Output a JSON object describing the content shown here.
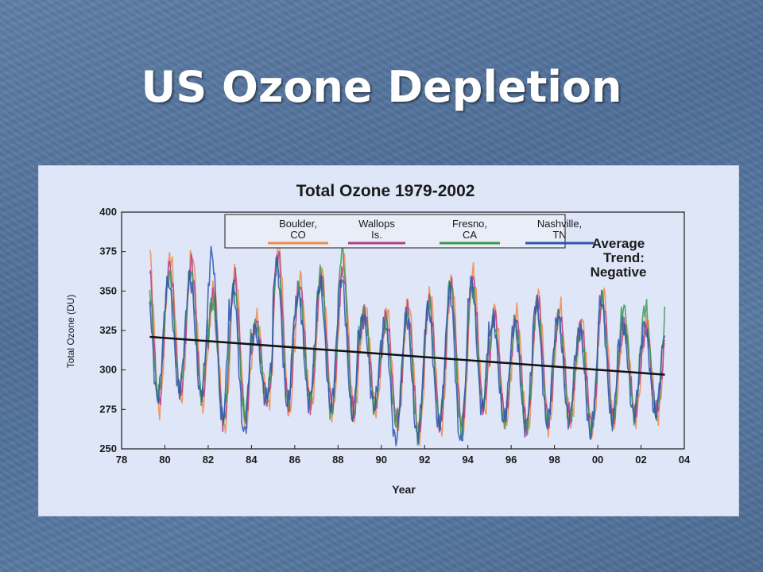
{
  "slide": {
    "title": "US Ozone Depletion"
  },
  "colors": {
    "Boulder": "#f08a4b",
    "Wallops": "#b0408a",
    "Fresno": "#3a9a50",
    "Nashville": "#2f55b0",
    "trend": "#111111"
  },
  "chart_data": {
    "type": "line",
    "title": "Total Ozone 1979-2002",
    "xlabel": "Year",
    "ylabel": "Total Ozone (DU)",
    "xlim": [
      1978,
      2004
    ],
    "ylim": [
      250,
      400
    ],
    "xticks": [
      1978,
      1980,
      1982,
      1984,
      1986,
      1988,
      1990,
      1992,
      1994,
      1996,
      1998,
      2000,
      2002,
      2004
    ],
    "xtick_labels": [
      "78",
      "80",
      "82",
      "84",
      "86",
      "88",
      "90",
      "92",
      "94",
      "96",
      "98",
      "00",
      "02",
      "04"
    ],
    "yticks": [
      250,
      275,
      300,
      325,
      350,
      375,
      400
    ],
    "ytick_labels": [
      "250",
      "275",
      "300",
      "325",
      "350",
      "375",
      "400"
    ],
    "grid": false,
    "legend_position": "top",
    "series": [
      {
        "name": "Boulder, CO",
        "label_line1": "Boulder,",
        "label_line2": "CO",
        "color_key": "Boulder",
        "annual_peaks": [
          378,
          372,
          374,
          352,
          362,
          332,
          380,
          358,
          362,
          368,
          340,
          338,
          342,
          348,
          356,
          362,
          338,
          336,
          348,
          340,
          332,
          350,
          330
        ],
        "annual_troughs": [
          275,
          282,
          278,
          263,
          266,
          278,
          272,
          275,
          274,
          270,
          275,
          264,
          258,
          262,
          262,
          272,
          266,
          262,
          264,
          266,
          262,
          266,
          270
        ]
      },
      {
        "name": "Wallops Is.",
        "label_line1": "Wallops",
        "label_line2": "Is.",
        "color_key": "Wallops",
        "annual_peaks": [
          370,
          366,
          368,
          348,
          358,
          330,
          374,
          354,
          358,
          362,
          336,
          334,
          338,
          344,
          352,
          358,
          334,
          332,
          344,
          336,
          328,
          346,
          326
        ],
        "annual_troughs": [
          280,
          285,
          282,
          267,
          270,
          282,
          276,
          279,
          278,
          274,
          279,
          268,
          262,
          266,
          266,
          276,
          270,
          266,
          268,
          270,
          266,
          270,
          274
        ]
      },
      {
        "name": "Fresno, CA",
        "label_line1": "Fresno,",
        "label_line2": "CA",
        "color_key": "Fresno",
        "annual_peaks": [
          362,
          360,
          362,
          344,
          352,
          328,
          368,
          350,
          362,
          376,
          338,
          330,
          336,
          342,
          356,
          354,
          330,
          328,
          340,
          332,
          326,
          344,
          340
        ],
        "annual_troughs": [
          284,
          288,
          285,
          270,
          272,
          284,
          280,
          282,
          272,
          268,
          276,
          266,
          260,
          268,
          262,
          278,
          268,
          264,
          268,
          268,
          262,
          266,
          272
        ]
      },
      {
        "name": "Nashville, TN",
        "label_line1": "Nashville,",
        "label_line2": "TN",
        "color_key": "Nashville",
        "annual_peaks": [
          358,
          356,
          358,
          374,
          350,
          326,
          366,
          348,
          354,
          358,
          334,
          330,
          334,
          340,
          350,
          356,
          332,
          330,
          342,
          334,
          326,
          344,
          328
        ],
        "annual_troughs": [
          282,
          287,
          284,
          269,
          260,
          282,
          278,
          280,
          277,
          272,
          277,
          254,
          258,
          264,
          254,
          275,
          268,
          264,
          266,
          268,
          260,
          268,
          272
        ]
      }
    ],
    "series_start_year": 1979.3,
    "series_end_year": 2003.1,
    "trend": {
      "x": [
        1979.3,
        2003.1
      ],
      "y": [
        321,
        297
      ]
    },
    "annotation": [
      "Average",
      "Trend:",
      "Negative"
    ]
  }
}
